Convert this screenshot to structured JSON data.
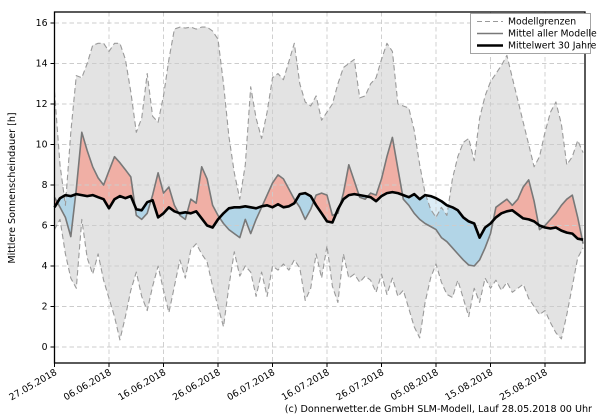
{
  "chart_data": {
    "type": "line",
    "title": "",
    "xlabel": "",
    "ylabel": "Mittlere Sonnenscheindauer [h]",
    "footer": "(c) Donnerwetter.de GmbH SLM-Modell, Lauf 28.05.2018 00 Uhr",
    "start_date": "27.05.2018",
    "end_date": "01.09.2018",
    "days": 98,
    "ylim": [
      0,
      16
    ],
    "yticks": [
      0,
      2,
      4,
      6,
      8,
      10,
      12,
      14,
      16
    ],
    "grid": true,
    "legend_position": "upper right",
    "x_ticks": {
      "day_indices": [
        0,
        10,
        20,
        30,
        40,
        50,
        60,
        70,
        80,
        90
      ],
      "labels": [
        "27.05.2018",
        "06.06.2018",
        "16.06.2018",
        "26.06.2018",
        "06.07.2018",
        "16.07.2018",
        "26.07.2018",
        "05.08.2018",
        "15.08.2018",
        "25.08.2018"
      ]
    },
    "legend": [
      {
        "label": "Modellgrenzen",
        "style": "dashed-gray"
      },
      {
        "label": "Mittel aller Modelle",
        "style": "solid-gray"
      },
      {
        "label": "Mittelwert 30 Jahre",
        "style": "solid-black-thick"
      }
    ],
    "series": [
      {
        "name": "Modellgrenzen (obere Grenze)",
        "role": "upper_bound",
        "style": "dashed-gray",
        "values": [
          12.6,
          9.0,
          7.0,
          10.6,
          13.4,
          13.3,
          14.0,
          14.9,
          15.0,
          15.0,
          14.6,
          15.0,
          15.0,
          14.2,
          12.6,
          10.6,
          11.3,
          13.5,
          11.4,
          11.1,
          12.4,
          14.2,
          15.7,
          15.8,
          15.75,
          15.8,
          15.7,
          15.8,
          15.8,
          15.6,
          15.2,
          13.0,
          10.4,
          8.6,
          7.3,
          9.0,
          12.85,
          11.3,
          10.3,
          11.6,
          13.3,
          13.5,
          13.2,
          14.1,
          15.0,
          13.0,
          12.1,
          11.9,
          12.4,
          11.2,
          11.6,
          12.0,
          13.0,
          13.8,
          14.0,
          14.2,
          12.3,
          12.4,
          13.0,
          13.3,
          14.2,
          15.0,
          14.6,
          12.0,
          11.9,
          11.8,
          10.7,
          9.0,
          7.6,
          6.8,
          6.4,
          6.9,
          6.5,
          8.3,
          9.4,
          10.1,
          10.3,
          9.2,
          11.3,
          12.4,
          13.1,
          13.5,
          13.9,
          14.4,
          13.3,
          12.2,
          11.1,
          10.0,
          8.9,
          9.4,
          10.6,
          11.6,
          12.1,
          11.0,
          9.0,
          9.4,
          10.2,
          9.6
        ]
      },
      {
        "name": "Modellgrenzen (untere Grenze)",
        "role": "lower_bound",
        "style": "dashed-gray",
        "values": [
          5.8,
          6.3,
          4.6,
          3.4,
          2.9,
          6.3,
          4.4,
          3.6,
          4.6,
          3.3,
          2.4,
          1.5,
          0.35,
          1.5,
          2.8,
          3.7,
          2.5,
          1.8,
          3.0,
          4.0,
          2.8,
          1.7,
          3.0,
          4.3,
          3.4,
          4.8,
          5.1,
          4.6,
          4.2,
          3.0,
          2.0,
          1.0,
          3.0,
          4.7,
          3.5,
          4.0,
          3.7,
          2.5,
          3.7,
          2.5,
          4.0,
          3.8,
          4.1,
          3.8,
          4.3,
          3.9,
          2.3,
          2.9,
          4.6,
          3.4,
          5.0,
          3.0,
          2.2,
          4.6,
          3.4,
          3.6,
          3.2,
          3.5,
          3.3,
          2.7,
          3.6,
          2.6,
          3.4,
          2.5,
          2.8,
          1.9,
          1.0,
          0.45,
          2.2,
          3.4,
          4.1,
          3.2,
          2.6,
          2.45,
          3.3,
          2.4,
          1.5,
          2.9,
          2.2,
          3.4,
          2.9,
          3.3,
          2.8,
          3.2,
          2.7,
          2.9,
          3.1,
          2.4,
          2.0,
          1.6,
          1.8,
          1.2,
          0.7,
          0.4,
          1.6,
          3.0,
          4.4,
          4.9
        ]
      },
      {
        "name": "Mittel aller Modelle",
        "role": "model_mean",
        "style": "solid-gray",
        "values": [
          7.4,
          6.9,
          6.4,
          5.45,
          7.8,
          10.6,
          9.7,
          8.9,
          8.35,
          8.0,
          8.7,
          9.4,
          9.1,
          8.75,
          8.4,
          6.5,
          6.3,
          6.6,
          7.5,
          8.6,
          7.6,
          7.9,
          7.0,
          6.5,
          6.3,
          7.3,
          7.1,
          8.9,
          8.3,
          7.0,
          6.5,
          6.1,
          5.8,
          5.6,
          5.4,
          6.3,
          5.6,
          6.3,
          6.9,
          7.5,
          8.1,
          8.5,
          8.3,
          7.8,
          7.3,
          6.9,
          6.3,
          6.8,
          7.5,
          7.6,
          7.5,
          6.5,
          6.6,
          7.6,
          9.0,
          8.2,
          7.4,
          7.3,
          7.6,
          7.5,
          8.3,
          9.4,
          10.35,
          8.8,
          7.3,
          7.0,
          6.6,
          6.3,
          6.1,
          5.95,
          5.8,
          5.4,
          5.2,
          4.9,
          4.6,
          4.3,
          4.05,
          4.0,
          4.3,
          4.9,
          5.6,
          6.9,
          7.1,
          7.3,
          7.0,
          7.3,
          7.9,
          8.25,
          7.2,
          5.8,
          6.0,
          6.3,
          6.6,
          7.0,
          7.3,
          7.5,
          6.4,
          5.1
        ]
      },
      {
        "name": "Mittelwert 30 Jahre",
        "role": "climate_mean",
        "style": "solid-black-thick",
        "values": [
          6.9,
          7.35,
          7.5,
          7.45,
          7.55,
          7.5,
          7.45,
          7.5,
          7.4,
          7.3,
          6.85,
          7.3,
          7.45,
          7.35,
          7.45,
          6.8,
          6.75,
          7.15,
          7.25,
          6.4,
          6.6,
          6.9,
          6.7,
          6.6,
          6.65,
          6.6,
          6.7,
          6.35,
          6.0,
          5.9,
          6.3,
          6.6,
          6.85,
          6.9,
          6.9,
          6.95,
          6.9,
          6.85,
          6.95,
          7.0,
          6.9,
          7.05,
          6.9,
          6.95,
          7.1,
          7.55,
          7.6,
          7.45,
          7.0,
          6.6,
          6.2,
          6.15,
          6.8,
          7.3,
          7.5,
          7.55,
          7.5,
          7.45,
          7.4,
          7.2,
          7.45,
          7.6,
          7.65,
          7.6,
          7.5,
          7.4,
          7.55,
          7.3,
          7.5,
          7.45,
          7.35,
          7.2,
          7.0,
          6.9,
          6.75,
          6.4,
          6.2,
          6.1,
          5.4,
          5.9,
          6.1,
          6.4,
          6.6,
          6.7,
          6.75,
          6.55,
          6.35,
          6.3,
          6.2,
          6.0,
          5.9,
          5.85,
          5.9,
          5.75,
          5.65,
          5.6,
          5.35,
          5.3
        ]
      }
    ],
    "colors": {
      "envelope_fill": "#e3e3e3",
      "above_climate_fill": "#f0afa5",
      "below_climate_fill": "#b2d5e7",
      "below_climate_fill_outside_envelope": "#dcedf6",
      "bound_line": "#9a9a9a",
      "model_mean_line": "#787878",
      "climate_line": "#000000",
      "grid": "#cccccc",
      "frame": "#000000",
      "legend_border": "#9a9a9a",
      "background": "#ffffff"
    }
  }
}
